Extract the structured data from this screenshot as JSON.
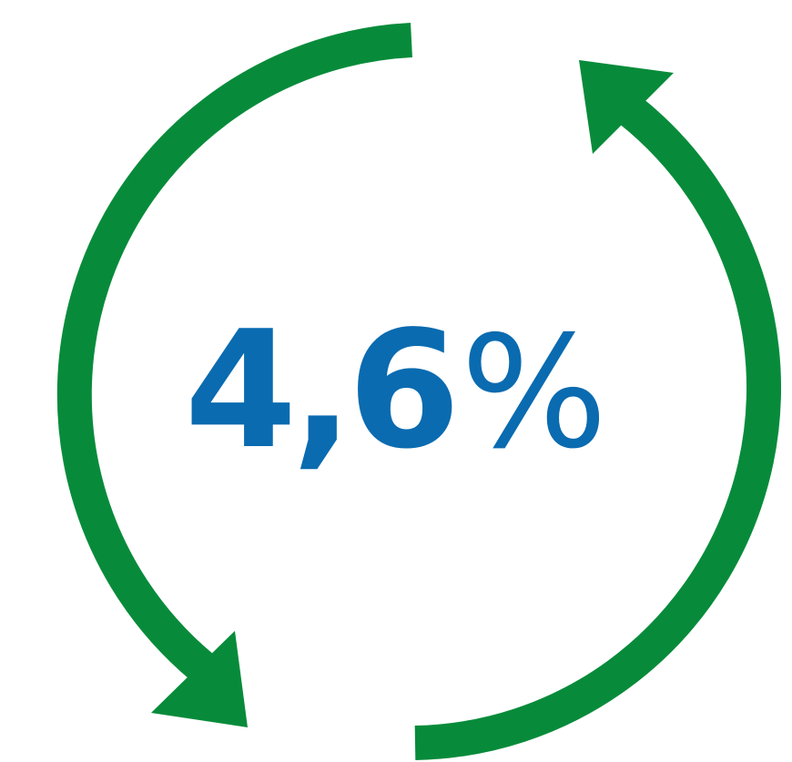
{
  "stat": {
    "value": "4,6",
    "unit": "%"
  },
  "colors": {
    "arrow": "#078B3A",
    "text": "#0A6BB0",
    "background": "#ffffff"
  },
  "icons": {
    "cycle": "circular-arrows-icon"
  }
}
